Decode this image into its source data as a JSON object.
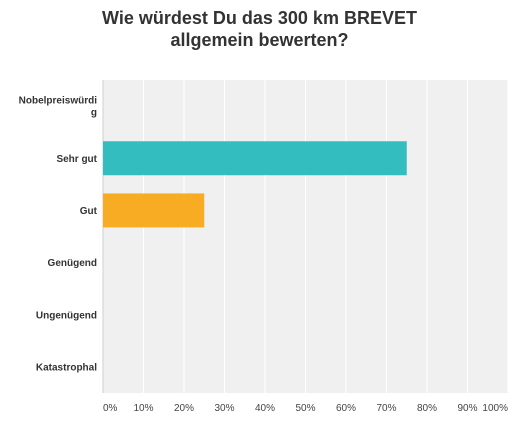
{
  "chart_data": {
    "type": "bar",
    "orientation": "horizontal",
    "title_lines": [
      "Wie würdest Du das 300 km BREVET",
      "allgemein bewerten?"
    ],
    "categories": [
      {
        "label_lines": [
          "Nobelpreiswürdi",
          "g"
        ],
        "value": 0,
        "color": ""
      },
      {
        "label_lines": [
          "Sehr gut"
        ],
        "value": 75,
        "color": "#33bdbf"
      },
      {
        "label_lines": [
          "Gut"
        ],
        "value": 25,
        "color": "#f7ac24"
      },
      {
        "label_lines": [
          "Genügend"
        ],
        "value": 0,
        "color": ""
      },
      {
        "label_lines": [
          "Ungenügend"
        ],
        "value": 0,
        "color": ""
      },
      {
        "label_lines": [
          "Katastrophal"
        ],
        "value": 0,
        "color": ""
      }
    ],
    "xlim": [
      0,
      100
    ],
    "xticks": [
      "0%",
      "10%",
      "20%",
      "30%",
      "40%",
      "50%",
      "60%",
      "70%",
      "80%",
      "90%",
      "100%"
    ],
    "plot_background": "#f0f0f0",
    "grid": true,
    "legend": false
  }
}
